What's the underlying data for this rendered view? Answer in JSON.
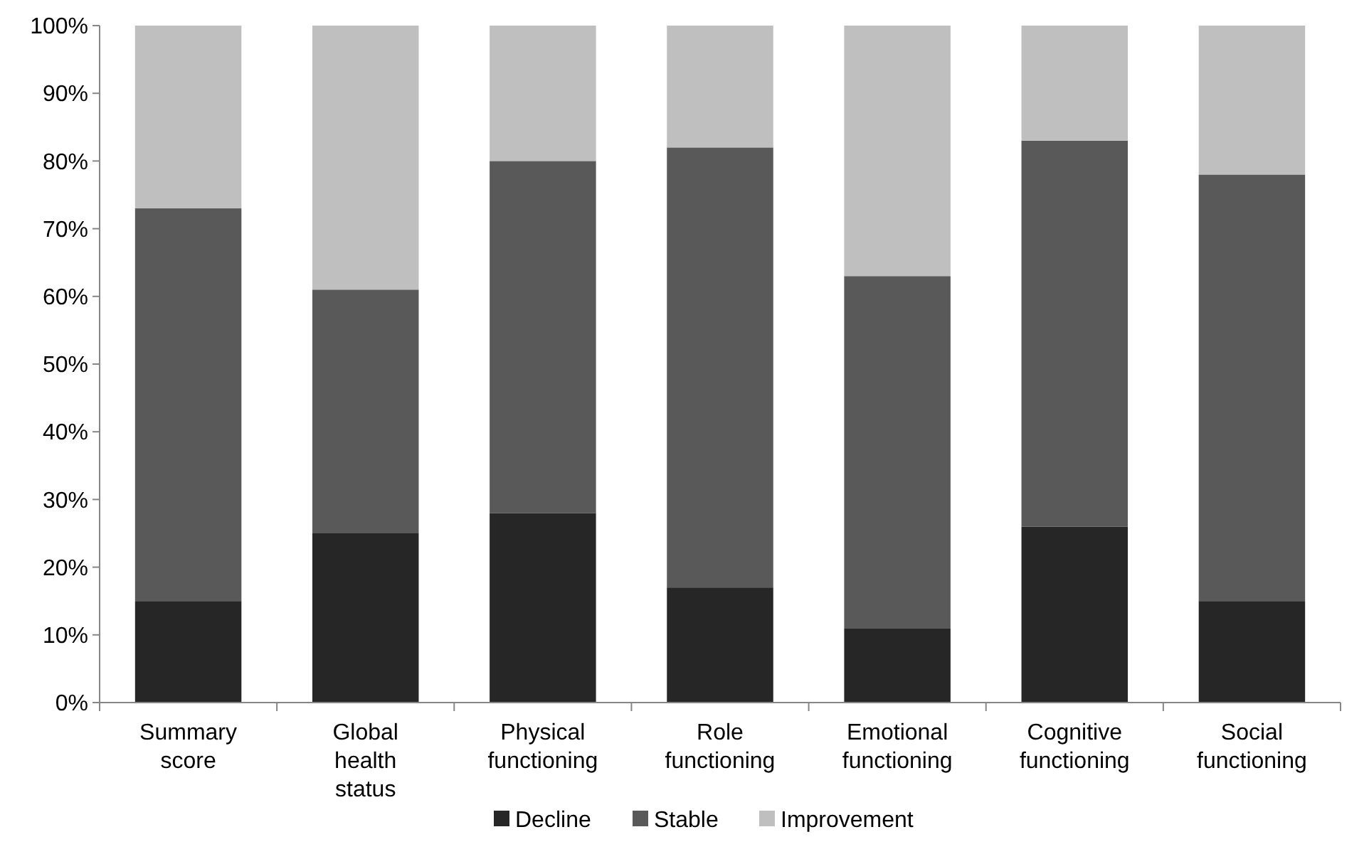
{
  "chart_data": {
    "type": "bar",
    "stacked": true,
    "categories": [
      "Summary score",
      "Global health status",
      "Physical functioning",
      "Role functioning",
      "Emotional functioning",
      "Cognitive functioning",
      "Social functioning"
    ],
    "series": [
      {
        "name": "Decline",
        "color": "#262626",
        "values": [
          15,
          25,
          28,
          17,
          11,
          26,
          15
        ]
      },
      {
        "name": "Stable",
        "color": "#595959",
        "values": [
          58,
          36,
          52,
          65,
          52,
          57,
          63
        ]
      },
      {
        "name": "Improvement",
        "color": "#bfbfbf",
        "values": [
          27,
          39,
          20,
          18,
          37,
          17,
          22
        ]
      }
    ],
    "ylim": [
      0,
      100
    ],
    "yticks": [
      {
        "value": 0,
        "label": "0%"
      },
      {
        "value": 10,
        "label": "10%"
      },
      {
        "value": 20,
        "label": "20%"
      },
      {
        "value": 30,
        "label": "30%"
      },
      {
        "value": 40,
        "label": "40%"
      },
      {
        "value": 50,
        "label": "50%"
      },
      {
        "value": 60,
        "label": "60%"
      },
      {
        "value": 70,
        "label": "70%"
      },
      {
        "value": 80,
        "label": "80%"
      },
      {
        "value": 90,
        "label": "90%"
      },
      {
        "value": 100,
        "label": "100%"
      }
    ],
    "grid": false,
    "legend": "bottom"
  }
}
